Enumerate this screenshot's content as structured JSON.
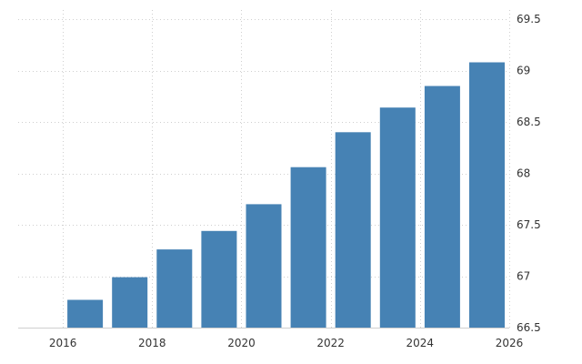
{
  "chart_data": {
    "type": "bar",
    "x": [
      2016,
      2017,
      2018,
      2019,
      2020,
      2021,
      2022,
      2023,
      2024,
      2025
    ],
    "values": [
      66.77,
      66.99,
      67.26,
      67.44,
      67.7,
      68.06,
      68.4,
      68.64,
      68.85,
      69.08
    ],
    "title": "",
    "xlabel": "",
    "ylabel": "",
    "xlim": [
      2015,
      2026
    ],
    "ylim": [
      66.5,
      69.5
    ],
    "x_ticks": [
      2016,
      2018,
      2020,
      2022,
      2024,
      2026
    ],
    "x_tick_labels": [
      "2016",
      "2018",
      "2020",
      "2022",
      "2024",
      "2026"
    ],
    "y_ticks": [
      66.5,
      67,
      67.5,
      68,
      68.5,
      69,
      69.5
    ],
    "y_tick_labels": [
      "66.5",
      "67",
      "67.5",
      "68",
      "68.5",
      "69",
      "69.5"
    ],
    "y_axis_position": "right",
    "grid": true,
    "legend": "none",
    "bar_color": "#4682b4"
  }
}
